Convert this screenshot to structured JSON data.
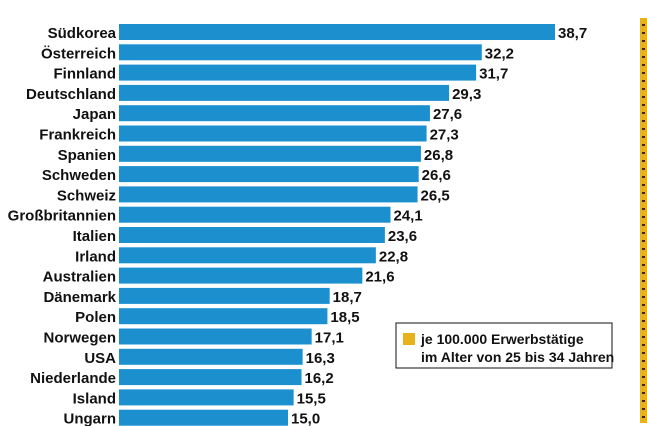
{
  "chart_data": {
    "type": "bar",
    "orientation": "horizontal",
    "categories": [
      "Südkorea",
      "Österreich",
      "Finnland",
      "Deutschland",
      "Japan",
      "Frankreich",
      "Spanien",
      "Schweden",
      "Schweiz",
      "Großbritannien",
      "Italien",
      "Irland",
      "Australien",
      "Dänemark",
      "Polen",
      "Norwegen",
      "USA",
      "Niederlande",
      "Island",
      "Ungarn"
    ],
    "values": [
      38.7,
      32.2,
      31.7,
      29.3,
      27.6,
      27.3,
      26.8,
      26.6,
      26.5,
      24.1,
      23.6,
      22.8,
      21.6,
      18.7,
      18.5,
      17.1,
      16.3,
      16.2,
      15.5,
      15.0
    ],
    "value_labels": [
      "38,7",
      "32,2",
      "31,7",
      "29,3",
      "27,6",
      "27,3",
      "26,8",
      "26,6",
      "26,5",
      "24,1",
      "23,6",
      "22,8",
      "21,6",
      "18,7",
      "18,5",
      "17,1",
      "16,3",
      "16,2",
      "15,5",
      "15,0"
    ],
    "xlim": [
      0,
      38.7
    ],
    "legend": {
      "entries": [
        "je 100.000 Erwerbstätige",
        "im Alter von 25 bis 34 Jahren"
      ],
      "placement": "right"
    },
    "colors": {
      "bar": "#1C8FCF",
      "legend_swatch": "#E8B21C",
      "right_strip": "#E8B21C",
      "strip_dots": "#3A2A10",
      "text": "#111111"
    }
  }
}
